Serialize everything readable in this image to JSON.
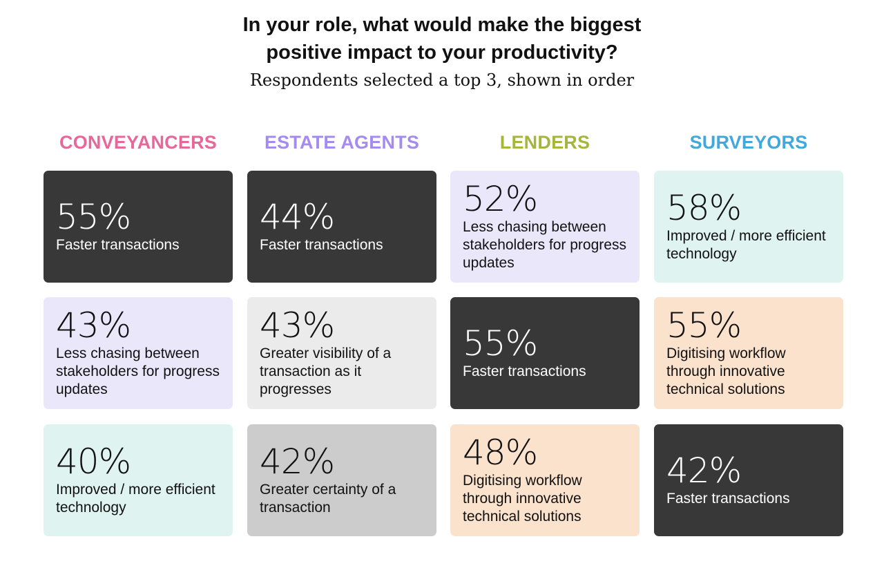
{
  "title": {
    "line1": "In your role, what would make the biggest",
    "line2": "positive impact to your productivity?"
  },
  "subtitle": "Respondents selected a top 3, shown in order",
  "columns": [
    {
      "header": "CONVEYANCERS",
      "color": "#e8679a",
      "cards": [
        {
          "pct": "55%",
          "desc": "Faster transactions",
          "style": "dark"
        },
        {
          "pct": "43%",
          "desc": "Less chasing between stakeholders for progress updates",
          "style": "lav"
        },
        {
          "pct": "40%",
          "desc": "Improved / more efficient technology",
          "style": "mint"
        }
      ]
    },
    {
      "header": "ESTATE AGENTS",
      "color": "#a58bf0",
      "cards": [
        {
          "pct": "44%",
          "desc": "Faster transactions",
          "style": "dark"
        },
        {
          "pct": "43%",
          "desc": "Greater visibility of a transaction as it progresses",
          "style": "light"
        },
        {
          "pct": "42%",
          "desc": "Greater certainty of a transaction",
          "style": "mid"
        }
      ]
    },
    {
      "header": "LENDERS",
      "color": "#a6b63a",
      "cards": [
        {
          "pct": "52%",
          "desc": "Less chasing between stakeholders for progress updates",
          "style": "lav"
        },
        {
          "pct": "55%",
          "desc": "Faster transactions",
          "style": "dark"
        },
        {
          "pct": "48%",
          "desc": "Digitising workflow through innovative technical solutions",
          "style": "peach"
        }
      ]
    },
    {
      "header": "SURVEYORS",
      "color": "#41a8de",
      "cards": [
        {
          "pct": "58%",
          "desc": "Improved / more efficient technology",
          "style": "mint"
        },
        {
          "pct": "55%",
          "desc": "Digitising workflow through innovative technical solutions",
          "style": "peach"
        },
        {
          "pct": "42%",
          "desc": "Faster transactions",
          "style": "dark"
        }
      ]
    }
  ]
}
